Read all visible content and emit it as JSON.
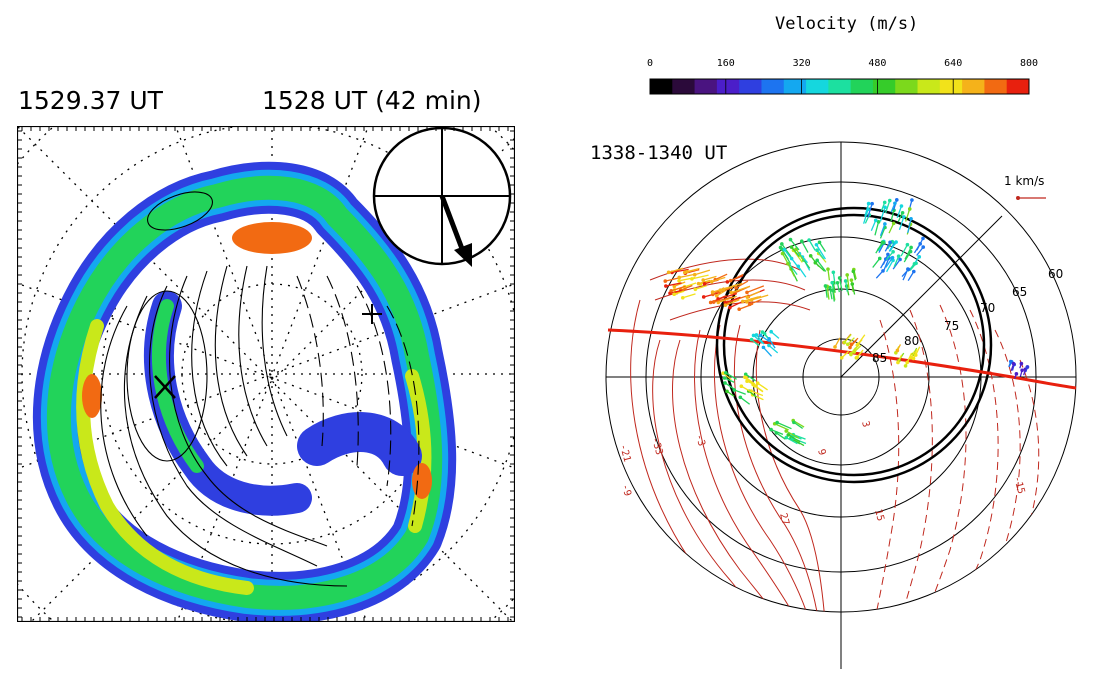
{
  "left_panel": {
    "time_label": "1529.37 UT",
    "subtitle": "1528 UT (42 min)"
  },
  "right_panel": {
    "colorbar": {
      "title": "Velocity (m/s)",
      "ticks": [
        "0",
        "160",
        "320",
        "480",
        "640",
        "800"
      ],
      "colors": [
        "#000000",
        "#2b0a3a",
        "#4a1480",
        "#4b1ec9",
        "#2f3fe0",
        "#1d74f0",
        "#14a8f0",
        "#15d7de",
        "#1ce0a0",
        "#22d35a",
        "#36cc2a",
        "#7cd91c",
        "#c9e81a",
        "#f2e21a",
        "#f5b21a",
        "#f26a12",
        "#e8200e"
      ]
    },
    "time_label": "1338-1340 UT",
    "scale_label": "1 km/s",
    "latitude_labels": [
      "60",
      "65",
      "70",
      "75",
      "80",
      "85"
    ],
    "contour_labels": [
      "-21",
      "-33",
      "-9",
      "-3",
      "3",
      "15",
      "-15",
      "9",
      "27"
    ]
  },
  "colors": {
    "auroral_high": "#f26a12",
    "auroral_mid": "#22d35a",
    "auroral_low": "#2f3fe0",
    "potential_contours": "#c0281e",
    "boundary_line": "#e8200e"
  }
}
